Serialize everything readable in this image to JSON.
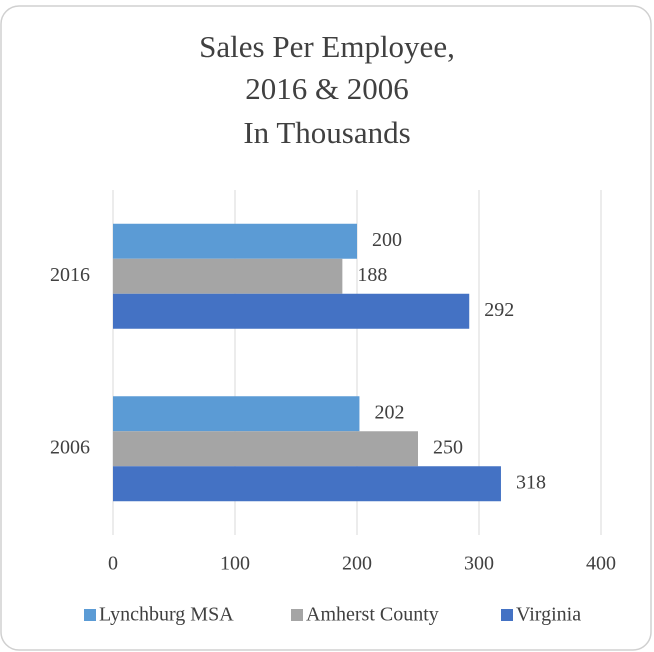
{
  "chart_data": {
    "type": "hbar",
    "title": [
      "Sales Per Employee,",
      "2016 & 2006",
      "In Thousands"
    ],
    "categories": [
      "2016",
      "2006"
    ],
    "series": [
      {
        "name": "Lynchburg MSA",
        "color": "#5b9bd5",
        "values": [
          200,
          202
        ]
      },
      {
        "name": "Amherst County",
        "color": "#a5a5a5",
        "values": [
          188,
          250
        ]
      },
      {
        "name": "Virginia",
        "color": "#4472c4",
        "values": [
          292,
          318
        ]
      }
    ],
    "xlim": [
      0,
      400
    ],
    "xticks": [
      0,
      100,
      200,
      300,
      400
    ],
    "grid": true,
    "legend": "bottom"
  }
}
